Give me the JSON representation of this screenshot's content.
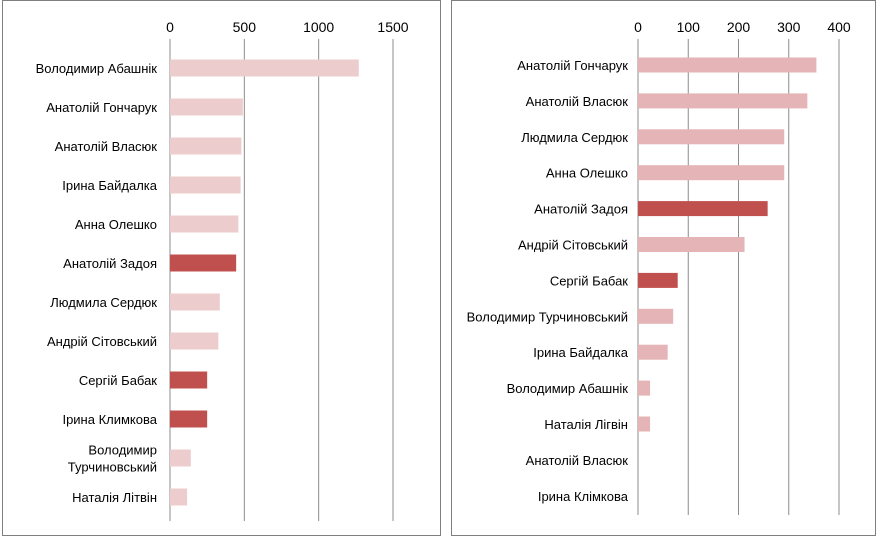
{
  "colors": {
    "light_bar": "#eccccd",
    "mid_bar": "#e4b4b6",
    "highlight_bar": "#c0504d",
    "grid": "#8c8c8c"
  },
  "chart_data": [
    {
      "type": "bar",
      "orientation": "horizontal",
      "categories": [
        "Володимир Абашнік",
        "Анатолій Гончарук",
        "Анатолій Власюк",
        "Ірина Байдалка",
        "Анна Олешко",
        "Анатолій Задоя",
        "Людмила Сердюк",
        "Андрій Сітовський",
        "Сергій Бабак",
        "Ірина Климкова",
        "Володимир Турчиновський",
        "Наталія Літвін"
      ],
      "category_lines": [
        [
          "Володимир Абашнік"
        ],
        [
          "Анатолій Гончарук"
        ],
        [
          "Анатолій Власюк"
        ],
        [
          "Ірина Байдалка"
        ],
        [
          "Анна Олешко"
        ],
        [
          "Анатолій Задоя"
        ],
        [
          "Людмила Сердюк"
        ],
        [
          "Андрій Сітовський"
        ],
        [
          "Сергій Бабак"
        ],
        [
          "Ірина Климкова"
        ],
        [
          "Володимир",
          "Турчиновський"
        ],
        [
          "Наталія Літвін"
        ]
      ],
      "values": [
        1270,
        490,
        480,
        475,
        460,
        445,
        335,
        325,
        250,
        250,
        140,
        115
      ],
      "highlighted": [
        false,
        false,
        false,
        false,
        false,
        true,
        false,
        false,
        true,
        true,
        false,
        false
      ],
      "xlim": [
        0,
        1500
      ],
      "xticks": [
        "0",
        "500",
        "1000",
        "1500"
      ],
      "xtick_values": [
        0,
        500,
        1000,
        1500
      ],
      "axis_position": "top",
      "grid": true
    },
    {
      "type": "bar",
      "orientation": "horizontal",
      "categories": [
        "Анатолій Гончарук",
        "Анатолій Власюк",
        "Людмила Сердюк",
        "Анна Олешко",
        "Анатолій Задоя",
        "Андрій Сітовський",
        "Сергій Бабак",
        "Володимир Турчиновський",
        "Ірина Байдалка",
        "Володимир Абашнік",
        "Наталія Лігвін",
        "Анатолій Власюк",
        "Ірина Клімкова"
      ],
      "values": [
        355,
        337,
        291,
        291,
        258,
        212,
        79,
        70,
        59,
        24,
        24,
        0,
        0
      ],
      "highlighted": [
        false,
        false,
        false,
        false,
        true,
        false,
        true,
        false,
        false,
        false,
        false,
        false,
        false
      ],
      "xlim": [
        0,
        400
      ],
      "xticks": [
        "0",
        "100",
        "200",
        "300",
        "400"
      ],
      "xtick_values": [
        0,
        100,
        200,
        300,
        400
      ],
      "axis_position": "top",
      "grid": true
    }
  ]
}
